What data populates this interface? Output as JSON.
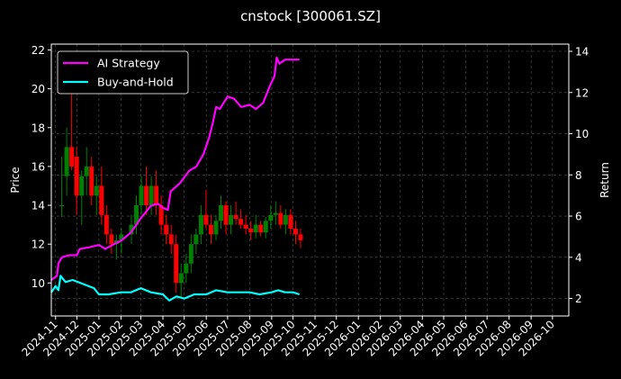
{
  "chart_data": {
    "type": "line",
    "title": "cnstock [300061.SZ]",
    "ylabel": "Price",
    "y2label": "Return",
    "ylim": [
      8.3,
      22.3
    ],
    "y2lim": [
      1.15,
      14.35
    ],
    "yticks": [
      10,
      12,
      14,
      16,
      18,
      20,
      22
    ],
    "y2ticks": [
      2,
      4,
      6,
      8,
      10,
      12,
      14
    ],
    "x_start": "2024-10-26",
    "x_end": "2026-10-24",
    "x_tick_labels": [
      "2024-11",
      "2024-12",
      "2025-01",
      "2025-02",
      "2025-03",
      "2025-04",
      "2025-05",
      "2025-06",
      "2025-07",
      "2025-08",
      "2025-09",
      "2025-10",
      "2025-11",
      "2025-12",
      "2026-01",
      "2026-02",
      "2026-03",
      "2026-04",
      "2026-05",
      "2026-06",
      "2026-07",
      "2026-08",
      "2026-09",
      "2026-10"
    ],
    "grid": true,
    "legend_position": "top-left",
    "colors": {
      "background": "#000000",
      "up_candle": "#008000",
      "down_candle": "#ff0000",
      "ai_strategy": "#ff00ff",
      "buy_and_hold": "#00ffff",
      "grid": "#555555"
    },
    "series": [
      {
        "name": "AI Strategy",
        "axis": "right",
        "points": [
          [
            "2024-10-26",
            2.9
          ],
          [
            "2024-11-03",
            3.1
          ],
          [
            "2024-11-05",
            3.7
          ],
          [
            "2024-11-10",
            4.0
          ],
          [
            "2024-11-20",
            4.1
          ],
          [
            "2024-12-01",
            4.1
          ],
          [
            "2024-12-05",
            4.4
          ],
          [
            "2024-12-20",
            4.5
          ],
          [
            "2025-01-01",
            4.6
          ],
          [
            "2025-01-10",
            4.4
          ],
          [
            "2025-01-20",
            4.6
          ],
          [
            "2025-02-01",
            4.8
          ],
          [
            "2025-02-15",
            5.2
          ],
          [
            "2025-03-01",
            5.9
          ],
          [
            "2025-03-15",
            6.5
          ],
          [
            "2025-03-25",
            6.6
          ],
          [
            "2025-04-01",
            6.4
          ],
          [
            "2025-04-08",
            6.3
          ],
          [
            "2025-04-12",
            7.2
          ],
          [
            "2025-04-25",
            7.6
          ],
          [
            "2025-05-08",
            8.2
          ],
          [
            "2025-05-18",
            8.4
          ],
          [
            "2025-05-28",
            9.0
          ],
          [
            "2025-06-05",
            9.8
          ],
          [
            "2025-06-10",
            10.5
          ],
          [
            "2025-06-15",
            11.3
          ],
          [
            "2025-06-20",
            11.2
          ],
          [
            "2025-07-01",
            11.8
          ],
          [
            "2025-07-10",
            11.7
          ],
          [
            "2025-07-20",
            11.3
          ],
          [
            "2025-08-01",
            11.4
          ],
          [
            "2025-08-10",
            11.2
          ],
          [
            "2025-08-20",
            11.5
          ],
          [
            "2025-08-28",
            12.2
          ],
          [
            "2025-09-05",
            12.8
          ],
          [
            "2025-09-08",
            13.7
          ],
          [
            "2025-09-12",
            13.4
          ],
          [
            "2025-09-20",
            13.6
          ],
          [
            "2025-10-10",
            13.6
          ]
        ]
      },
      {
        "name": "Buy-and-Hold",
        "axis": "right",
        "points": [
          [
            "2024-10-26",
            2.3
          ],
          [
            "2024-11-01",
            2.6
          ],
          [
            "2024-11-05",
            2.4
          ],
          [
            "2024-11-08",
            3.1
          ],
          [
            "2024-11-15",
            2.8
          ],
          [
            "2024-11-25",
            2.9
          ],
          [
            "2024-12-10",
            2.7
          ],
          [
            "2024-12-25",
            2.5
          ],
          [
            "2025-01-01",
            2.2
          ],
          [
            "2025-01-15",
            2.2
          ],
          [
            "2025-02-01",
            2.3
          ],
          [
            "2025-02-15",
            2.3
          ],
          [
            "2025-03-01",
            2.5
          ],
          [
            "2025-03-15",
            2.3
          ],
          [
            "2025-04-01",
            2.2
          ],
          [
            "2025-04-10",
            1.9
          ],
          [
            "2025-04-20",
            2.1
          ],
          [
            "2025-05-01",
            2.0
          ],
          [
            "2025-05-15",
            2.2
          ],
          [
            "2025-06-01",
            2.2
          ],
          [
            "2025-06-15",
            2.4
          ],
          [
            "2025-07-01",
            2.3
          ],
          [
            "2025-07-15",
            2.3
          ],
          [
            "2025-08-01",
            2.3
          ],
          [
            "2025-08-15",
            2.2
          ],
          [
            "2025-09-01",
            2.3
          ],
          [
            "2025-09-10",
            2.4
          ],
          [
            "2025-09-20",
            2.3
          ],
          [
            "2025-10-01",
            2.3
          ],
          [
            "2025-10-10",
            2.2
          ]
        ]
      }
    ],
    "candles": {
      "axis": "left",
      "description_values": [
        [
          "2024-10-28",
          14,
          16.5,
          13.4,
          14
        ],
        [
          "2024-11-04",
          15.5,
          18,
          14.5,
          17
        ],
        [
          "2024-11-11",
          17,
          20,
          15.8,
          16
        ],
        [
          "2024-11-18",
          16.5,
          17,
          13.5,
          14.5
        ],
        [
          "2024-11-25",
          14.5,
          15.8,
          13,
          15.5
        ],
        [
          "2024-12-02",
          15.5,
          17,
          14.5,
          16
        ],
        [
          "2024-12-09",
          16,
          16.5,
          14,
          14.5
        ],
        [
          "2024-12-16",
          14.5,
          15.5,
          13.5,
          15
        ],
        [
          "2024-12-23",
          15,
          16,
          13,
          13.5
        ],
        [
          "2024-12-30",
          13.5,
          14,
          12,
          12.5
        ],
        [
          "2025-01-06",
          12.5,
          12.8,
          11.5,
          12
        ],
        [
          "2025-01-13",
          12,
          12.5,
          11.2,
          12.2
        ],
        [
          "2025-01-20",
          12.2,
          12.8,
          11.5,
          12.5
        ],
        [
          "2025-02-03",
          12.5,
          13.5,
          12,
          13
        ],
        [
          "2025-02-10",
          13,
          14.5,
          12.5,
          14
        ],
        [
          "2025-02-17",
          14,
          15.5,
          13.5,
          15
        ],
        [
          "2025-02-24",
          15,
          16,
          13.5,
          14
        ],
        [
          "2025-03-03",
          14,
          15.5,
          13.5,
          15
        ],
        [
          "2025-03-10",
          15,
          15.8,
          13.5,
          14
        ],
        [
          "2025-03-17",
          14,
          14.5,
          12.5,
          13
        ],
        [
          "2025-03-24",
          13,
          13.5,
          12,
          12.5
        ],
        [
          "2025-03-31",
          12.5,
          13,
          11.5,
          12
        ],
        [
          "2025-04-07",
          12,
          12.5,
          9.5,
          10
        ],
        [
          "2025-04-14",
          10,
          11,
          9.2,
          10.5
        ],
        [
          "2025-04-21",
          10.5,
          11.5,
          10,
          11
        ],
        [
          "2025-04-28",
          11,
          12.5,
          10.5,
          12
        ],
        [
          "2025-05-05",
          12,
          12.8,
          11.5,
          12.5
        ],
        [
          "2025-05-12",
          12.5,
          14,
          12,
          13.5
        ],
        [
          "2025-05-19",
          13.5,
          14.8,
          12.8,
          13
        ],
        [
          "2025-05-26",
          13,
          13.5,
          12,
          12.5
        ],
        [
          "2025-06-02",
          12.5,
          13.5,
          12.2,
          13.2
        ],
        [
          "2025-06-09",
          13.2,
          14.5,
          12.8,
          14
        ],
        [
          "2025-06-16",
          14,
          14.2,
          12.5,
          13
        ],
        [
          "2025-06-23",
          13,
          14,
          12.5,
          13.5
        ],
        [
          "2025-06-30",
          13.5,
          14.2,
          13,
          13.3
        ],
        [
          "2025-07-07",
          13.3,
          13.8,
          12.8,
          13
        ],
        [
          "2025-07-14",
          13,
          13.5,
          12.5,
          12.8
        ],
        [
          "2025-07-21",
          12.8,
          13.2,
          12.2,
          12.6
        ],
        [
          "2025-07-28",
          12.6,
          13.5,
          12.3,
          13
        ],
        [
          "2025-08-04",
          13,
          13.2,
          12.4,
          12.6
        ],
        [
          "2025-08-11",
          12.6,
          13.4,
          12.3,
          13.2
        ],
        [
          "2025-08-18",
          13.2,
          14,
          12.8,
          13.5
        ],
        [
          "2025-08-25",
          13.5,
          14.2,
          13,
          13.6
        ],
        [
          "2025-09-01",
          13.6,
          14,
          12.8,
          13
        ],
        [
          "2025-09-08",
          13,
          13.8,
          12.5,
          13.5
        ],
        [
          "2025-09-15",
          13.5,
          13.8,
          12.5,
          12.8
        ],
        [
          "2025-09-22",
          12.8,
          13.2,
          12,
          12.5
        ],
        [
          "2025-09-29",
          12.5,
          12.8,
          11.8,
          12.2
        ]
      ]
    }
  }
}
